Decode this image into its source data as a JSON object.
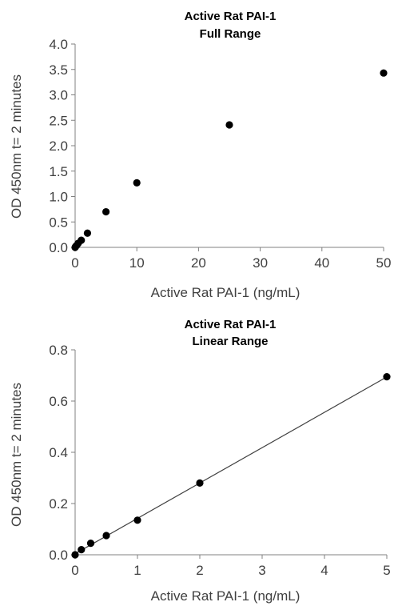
{
  "chart_data": [
    {
      "type": "scatter",
      "title": "Active  Rat PAI-1",
      "subtitle": "Full Range",
      "xlabel": "Active Rat PAI-1 (ng/mL)",
      "ylabel": "OD 450nm t= 2 minutes",
      "xlim": [
        0,
        50
      ],
      "ylim": [
        0,
        4.0
      ],
      "xticks": [
        "0",
        "10",
        "20",
        "30",
        "40",
        "50"
      ],
      "yticks": [
        "0.0",
        "0.5",
        "1.0",
        "1.5",
        "2.0",
        "2.5",
        "3.0",
        "3.5",
        "4.0"
      ],
      "grid": false,
      "legend": "none",
      "marker_color": "#000000",
      "axis_color": "#808080",
      "points": [
        {
          "x": 0,
          "y": 0.0
        },
        {
          "x": 0.1,
          "y": 0.02
        },
        {
          "x": 0.25,
          "y": 0.04
        },
        {
          "x": 0.5,
          "y": 0.08
        },
        {
          "x": 1,
          "y": 0.14
        },
        {
          "x": 2,
          "y": 0.28
        },
        {
          "x": 5,
          "y": 0.7
        },
        {
          "x": 10,
          "y": 1.27
        },
        {
          "x": 25,
          "y": 2.41
        },
        {
          "x": 50,
          "y": 3.43
        }
      ]
    },
    {
      "type": "scatter",
      "title": "Active  Rat PAI-1",
      "subtitle": "Linear Range",
      "xlabel": "Active Rat PAI-1 (ng/mL)",
      "ylabel": "OD 450nm t= 2 minutes",
      "xlim": [
        0,
        5
      ],
      "ylim": [
        0,
        0.8
      ],
      "xticks": [
        "0",
        "1",
        "2",
        "3",
        "4",
        "5"
      ],
      "yticks": [
        "0.0",
        "0.2",
        "0.4",
        "0.6",
        "0.8"
      ],
      "grid": false,
      "legend": "none",
      "trendline": "linear",
      "marker_color": "#000000",
      "line_color": "#404040",
      "axis_color": "#808080",
      "points": [
        {
          "x": 0,
          "y": 0.0
        },
        {
          "x": 0.1,
          "y": 0.02
        },
        {
          "x": 0.25,
          "y": 0.045
        },
        {
          "x": 0.5,
          "y": 0.075
        },
        {
          "x": 1,
          "y": 0.135
        },
        {
          "x": 2,
          "y": 0.28
        },
        {
          "x": 5,
          "y": 0.695
        }
      ]
    }
  ]
}
